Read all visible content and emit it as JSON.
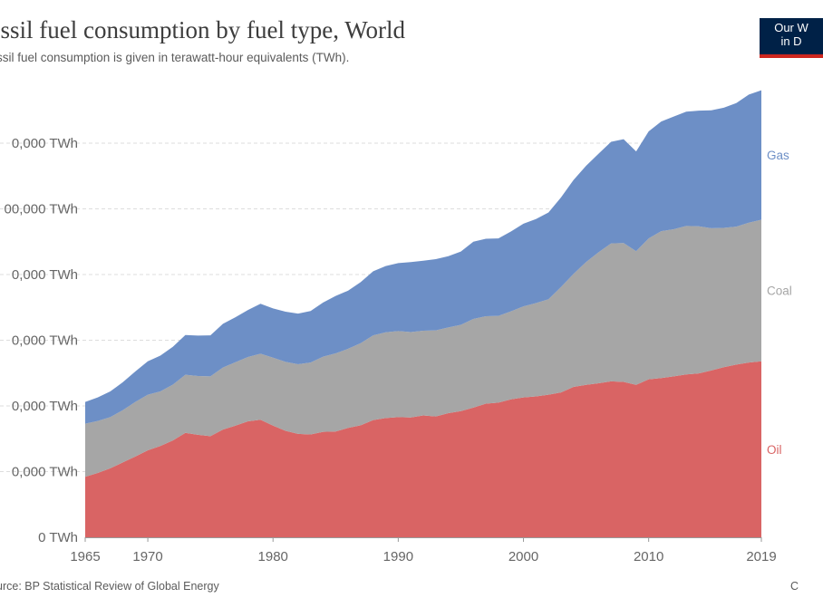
{
  "header": {
    "title": "ossil fuel consumption by fuel type, World",
    "subtitle": "ssil fuel consumption is given in terawatt-hour equivalents (TWh).",
    "logo_line1": "Our W",
    "logo_line2": "in D"
  },
  "footer": {
    "source": "urce: BP Statistical Review of Global Energy",
    "license": "C"
  },
  "colors": {
    "oil": "#d96464",
    "coal": "#a6a6a6",
    "gas": "#6d8fc6",
    "grid": "#dddddd"
  },
  "chart_data": {
    "type": "area",
    "stacked": true,
    "title": "ossil fuel consumption by fuel type, World",
    "subtitle": "ssil fuel consumption is given in terawatt-hour equivalents (TWh).",
    "xlabel": "",
    "ylabel": "",
    "y_tick_labels": [
      "0 TWh",
      "0,000 TWh",
      "0,000 TWh",
      "0,000 TWh",
      "0,000 TWh",
      "00,000 TWh",
      "0,000 TWh"
    ],
    "y_tick_values": [
      0,
      20000,
      40000,
      60000,
      80000,
      100000,
      120000
    ],
    "ylim": [
      0,
      140000
    ],
    "x_ticks": [
      1965,
      1970,
      1980,
      1990,
      2000,
      2010,
      2019
    ],
    "x_tick_labels": [
      "1965",
      "1970",
      "1980",
      "1990",
      "2000",
      "2010",
      "2019"
    ],
    "grid": "horizontal dashed",
    "legend": "right, inline labels",
    "x": [
      1965,
      1966,
      1967,
      1968,
      1969,
      1970,
      1971,
      1972,
      1973,
      1974,
      1975,
      1976,
      1977,
      1978,
      1979,
      1980,
      1981,
      1982,
      1983,
      1984,
      1985,
      1986,
      1987,
      1988,
      1989,
      1990,
      1991,
      1992,
      1993,
      1994,
      1995,
      1996,
      1997,
      1998,
      1999,
      2000,
      2001,
      2002,
      2003,
      2004,
      2005,
      2006,
      2007,
      2008,
      2009,
      2010,
      2011,
      2012,
      2013,
      2014,
      2015,
      2016,
      2017,
      2018,
      2019
    ],
    "series": [
      {
        "name": "Oil",
        "color": "#d96464",
        "values": [
          18400,
          19600,
          21000,
          22800,
          24600,
          26500,
          27800,
          29500,
          31800,
          31200,
          30800,
          32800,
          34000,
          35300,
          35800,
          34000,
          32400,
          31500,
          31300,
          32100,
          32200,
          33300,
          34100,
          35700,
          36300,
          36600,
          36500,
          37100,
          36800,
          37800,
          38400,
          39500,
          40700,
          41000,
          42000,
          42600,
          42900,
          43400,
          44100,
          45800,
          46400,
          46900,
          47500,
          47300,
          46400,
          48100,
          48500,
          49000,
          49600,
          49900,
          50800,
          51800,
          52600,
          53200,
          53600
        ]
      },
      {
        "name": "Coal",
        "color": "#a6a6a6",
        "values": [
          16200,
          15800,
          15600,
          15900,
          16600,
          16900,
          16600,
          17000,
          17700,
          17900,
          18200,
          18900,
          19300,
          19600,
          20100,
          20700,
          21000,
          21200,
          21900,
          22900,
          23800,
          24100,
          25000,
          25800,
          26100,
          26200,
          26000,
          25800,
          26200,
          26100,
          26300,
          27000,
          26600,
          26400,
          26800,
          27700,
          28400,
          29100,
          32100,
          34400,
          37400,
          39900,
          42000,
          42300,
          40700,
          42900,
          44700,
          44800,
          45200,
          44800,
          43300,
          42400,
          42000,
          42600,
          43100
        ]
      },
      {
        "name": "Gas",
        "color": "#6d8fc6",
        "values": [
          6600,
          7200,
          7800,
          8500,
          9300,
          10200,
          10900,
          11500,
          12100,
          12300,
          12500,
          13300,
          13700,
          14300,
          15200,
          15000,
          15300,
          15400,
          15700,
          16500,
          17500,
          17700,
          18600,
          19500,
          20200,
          20700,
          21300,
          21300,
          21700,
          21700,
          22300,
          23500,
          23600,
          23600,
          24300,
          25200,
          25600,
          26400,
          27300,
          28600,
          29300,
          30000,
          30900,
          31600,
          30400,
          32600,
          33400,
          34300,
          34800,
          35200,
          35900,
          36600,
          37600,
          39000,
          39400
        ]
      }
    ]
  }
}
